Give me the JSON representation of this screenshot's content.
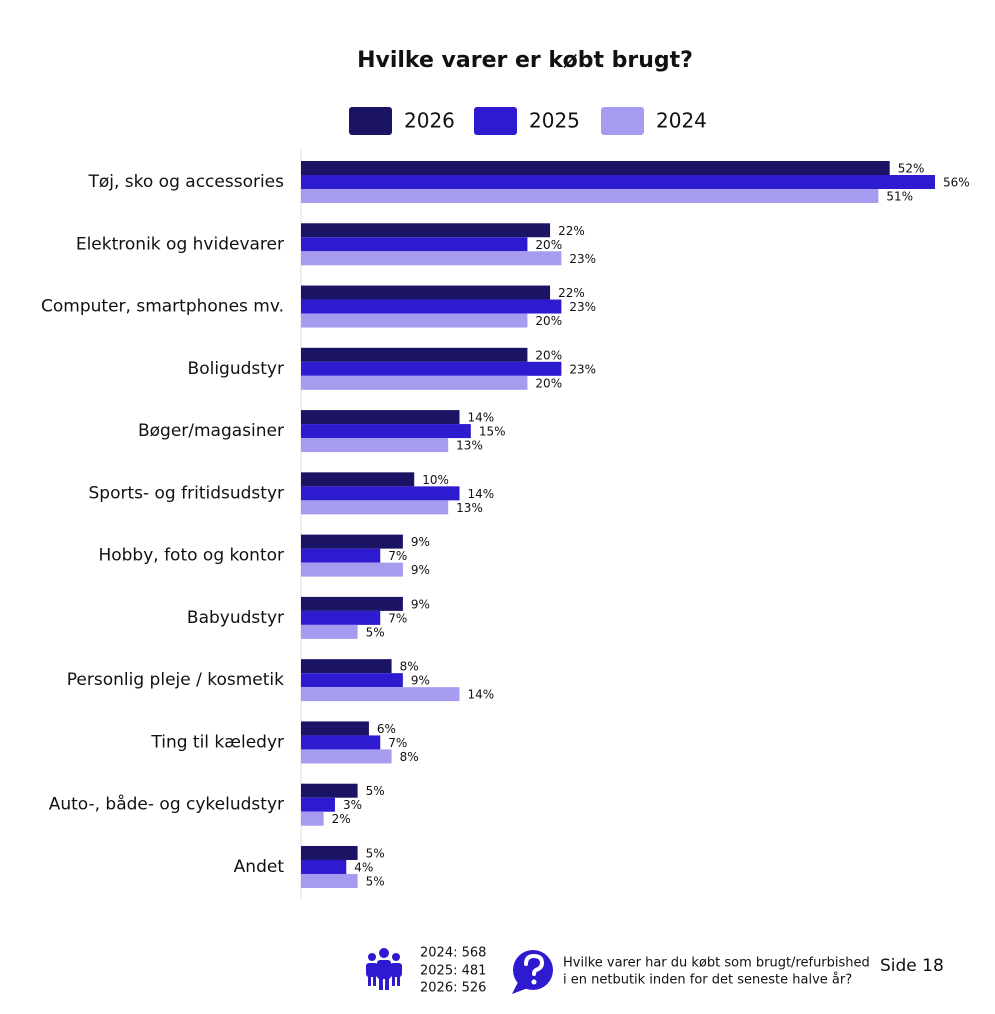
{
  "chart_data": {
    "type": "bar",
    "orientation": "horizontal",
    "title": "Hvilke varer er købt brugt?",
    "categories": [
      "Tøj, sko og accessories",
      "Elektronik og hvidevarer",
      "Computer, smartphones mv.",
      "Boligudstyr",
      "Bøger/magasiner",
      "Sports- og fritidsudstyr",
      "Hobby, foto og kontor",
      "Babyudstyr",
      "Personlig pleje / kosmetik",
      "Ting til kæledyr",
      "Auto-, både- og cykeludstyr",
      "Andet"
    ],
    "series": [
      {
        "name": "2026",
        "color": "#1b1464",
        "values": [
          52,
          22,
          22,
          20,
          14,
          10,
          9,
          9,
          8,
          6,
          5,
          5
        ],
        "value_labels": [
          "52%",
          "22%",
          "22%",
          "20%",
          "14%",
          "10%",
          "9%",
          "9%",
          "8%",
          "6%",
          "5%",
          "5%"
        ]
      },
      {
        "name": "2025",
        "color": "#2e1bd0",
        "values": [
          56,
          20,
          23,
          23,
          15,
          14,
          7,
          7,
          9,
          7,
          3,
          4
        ],
        "value_labels": [
          "56%",
          "20%",
          "23%",
          "23%",
          "15%",
          "14%",
          "7%",
          "7%",
          "9%",
          "7%",
          "3%",
          "4%"
        ]
      },
      {
        "name": "2024",
        "color": "#a59cf0",
        "values": [
          51,
          23,
          20,
          20,
          13,
          13,
          9,
          5,
          14,
          8,
          2,
          5
        ],
        "value_labels": [
          "51%",
          "23%",
          "20%",
          "20%",
          "13%",
          "13%",
          "9%",
          "5%",
          "14%",
          "8%",
          "2%",
          "5%"
        ]
      }
    ]
  },
  "footer": {
    "sample_sizes": [
      "2024: 568",
      "2025: 481",
      "2026: 526"
    ],
    "question": [
      "Hvilke varer har du købt som brugt/refurbished",
      "i en netbutik inden for det seneste halve år?"
    ],
    "page": "Side 18"
  }
}
